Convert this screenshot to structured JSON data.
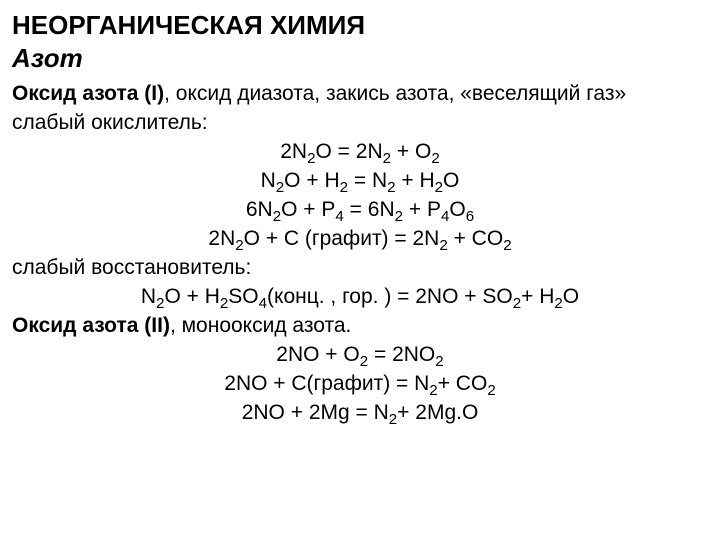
{
  "title": "НЕОРГАНИЧЕСКАЯ ХИМИЯ",
  "subtitle": "Азот",
  "intro_bold": "Оксид азота (І)",
  "intro_tail": ", оксид диазота, закись азота, «веселящий газ»",
  "weak_ox": "слабый окислитель:",
  "eq1_a": "2N",
  "eq1_b": "O  = 2N",
  "eq1_c": " + O",
  "eq2_a": "N",
  "eq2_b": "O + H",
  "eq2_c": " = N",
  "eq2_d": " + H",
  "eq2_e": "O",
  "eq3_a": "6N",
  "eq3_b": "O + P",
  "eq3_c": " = 6N",
  "eq3_d": " + P",
  "eq3_e": "O",
  "eq4_a": "2N",
  "eq4_b": "O + C (графит) = 2N",
  "eq4_c": " + CO",
  "weak_red": "слабый восстановитель:",
  "eq5_a": "N",
  "eq5_b": "O + H",
  "eq5_c": "SO",
  "eq5_d": "(конц. , гор. ) = 2NO + SO",
  "eq5_e": "+ H",
  "eq5_f": "O",
  "no2_bold": "Оксид азота (ІІ)",
  "no2_tail": ", монооксид азота.",
  "eq6_a": "2NO + O",
  "eq6_b": " = 2NO",
  "eq7_a": "2NO + C(графит) = N",
  "eq7_b": "+ CO",
  "eq8_a": "2NO + 2Mg = N",
  "eq8_b": "+ 2Mg.O",
  "s2": "2",
  "s4": "4",
  "s6": "6"
}
